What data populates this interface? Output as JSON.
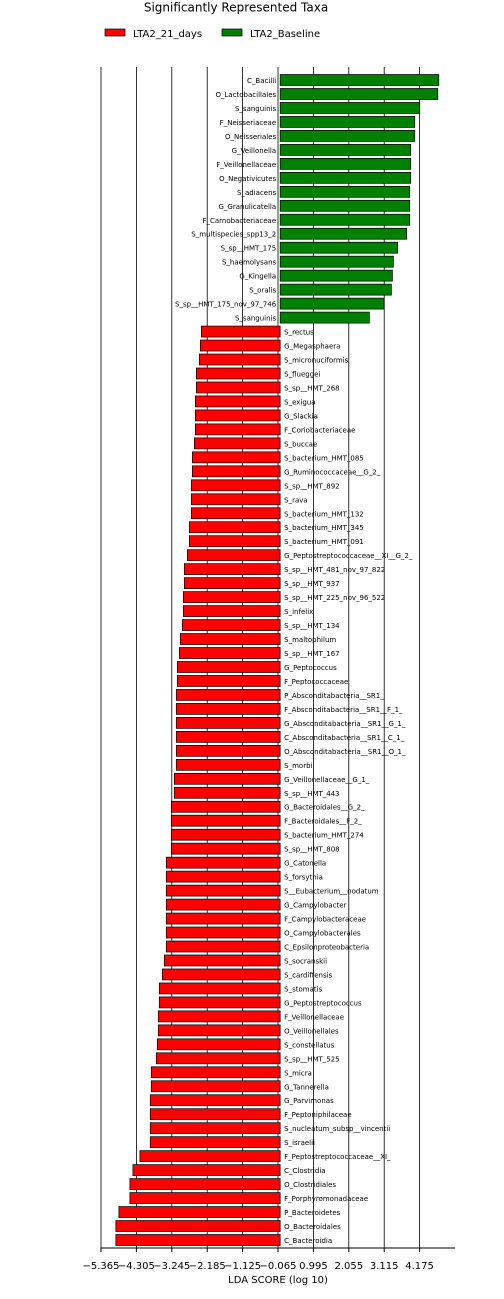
{
  "chart_data": {
    "type": "bar",
    "orientation": "horizontal",
    "title": "Significantly Represented Taxa",
    "x_label": "LDA SCORE (log 10)",
    "categories": [
      "C_Bacilli",
      "O_Lactobacillales",
      "S_sanguinis",
      "F_Neisseriaceae",
      "O_Neisseriales",
      "G_Veillonella",
      "F_Veillonellaceae",
      "O_Negativicutes",
      "S_adiacens",
      "G_Granulicatella",
      "F_Carnobacteriaceae",
      "S_multispecies_spp13_2",
      "S_sp__HMT_175",
      "S_haemolysans",
      "G_Kingella",
      "S_oralis",
      "S_sp__HMT_175_nov_97_746",
      "S_sanguinis",
      "S_rectus",
      "G_Megasphaera",
      "S_micronuciformis",
      "S_flueggei",
      "S_sp__HMT_268",
      "S_exigua",
      "G_Slackia",
      "F_Coriobacteriaceae",
      "S_buccae",
      "S_bacterium_HMT_085",
      "G_Ruminococcaceae__G_2_",
      "S_sp__HMT_892",
      "S_rava",
      "S_bacterium_HMT_132",
      "S_bacterium_HMT_345",
      "S_bacterium_HMT_091",
      "G_Peptostreptococcaceae__XI__G_2_",
      "S_sp__HMT_481_nov_97_822",
      "S_sp__HMT_937",
      "S_sp__HMT_225_nov_96_522",
      "S_infelix",
      "S_sp__HMT_134",
      "S_maltophilum",
      "S_sp__HMT_167",
      "G_Peptococcus",
      "F_Peptococcaceae",
      "P_Absconditabacteria__SR1_",
      "F_Absconditabacteria__SR1__F_1_",
      "G_Absconditabacteria__SR1__G_1_",
      "C_Absconditabacteria__SR1__C_1_",
      "O_Absconditabacteria__SR1__O_1_",
      "S_morbi",
      "G_Veillonellaceae__G_1_",
      "S_sp__HMT_443",
      "G_Bacteroidales__G_2_",
      "F_Bacteroidales__F_2_",
      "S_bacterium_HMT_274",
      "S_sp__HMT_808",
      "G_Catonella",
      "S_forsythia",
      "S__Eubacterium__nodatum",
      "G_Campylobacter",
      "F_Campylobacteraceae",
      "O_Campylobacterales",
      "C_Epsilonproteobacteria",
      "S_socranskii",
      "S_cardiffensis",
      "S_stomatis",
      "G_Peptostreptococcus",
      "F_Veillonellaceae",
      "O_Veillonellales",
      "S_constellatus",
      "S_sp__HMT_525",
      "S_micra",
      "G_Tannerella",
      "G_Parvimonas",
      "F_Peptoniphilaceae",
      "S_nucleatum_subsp__vincentii",
      "S_israelii",
      "F_Peptostreptococcaceae__XI_",
      "C_Clostridia",
      "O_Clostridiales",
      "F_Porphyromonadaceae",
      "P_Bacteroidetes",
      "O_Bacteroidales",
      "C_Bacteroidia"
    ],
    "series": [
      {
        "name": "LTA2_21_days",
        "color": "#ff0000",
        "values": [
          null,
          null,
          null,
          null,
          null,
          null,
          null,
          null,
          null,
          null,
          null,
          null,
          null,
          null,
          null,
          null,
          null,
          null,
          -2.36,
          -2.39,
          -2.42,
          -2.51,
          -2.51,
          -2.54,
          -2.54,
          -2.54,
          -2.57,
          -2.63,
          -2.63,
          -2.66,
          -2.66,
          -2.66,
          -2.72,
          -2.72,
          -2.78,
          -2.87,
          -2.87,
          -2.9,
          -2.9,
          -2.93,
          -2.99,
          -3.02,
          -3.08,
          -3.08,
          -3.11,
          -3.11,
          -3.11,
          -3.11,
          -3.11,
          -3.11,
          -3.17,
          -3.17,
          -3.26,
          -3.26,
          -3.26,
          -3.26,
          -3.41,
          -3.41,
          -3.41,
          -3.41,
          -3.41,
          -3.41,
          -3.41,
          -3.47,
          -3.53,
          -3.62,
          -3.62,
          -3.65,
          -3.65,
          -3.68,
          -3.71,
          -3.86,
          -3.86,
          -3.89,
          -3.89,
          -3.89,
          -3.89,
          -4.2,
          -4.41,
          -4.5,
          -4.5,
          -4.83,
          -4.92,
          -4.92
        ]
      },
      {
        "name": "LTA2_Baseline",
        "color": "#008000",
        "values": [
          4.75,
          4.72,
          4.18,
          4.03,
          4.03,
          3.91,
          3.91,
          3.91,
          3.88,
          3.88,
          3.88,
          3.79,
          3.52,
          3.39,
          3.36,
          3.33,
          3.09,
          2.67,
          null,
          null,
          null,
          null,
          null,
          null,
          null,
          null,
          null,
          null,
          null,
          null,
          null,
          null,
          null,
          null,
          null,
          null,
          null,
          null,
          null,
          null,
          null,
          null,
          null,
          null,
          null,
          null,
          null,
          null,
          null,
          null,
          null,
          null,
          null,
          null,
          null,
          null,
          null,
          null,
          null,
          null,
          null,
          null,
          null,
          null,
          null,
          null,
          null,
          null,
          null,
          null,
          null,
          null,
          null,
          null,
          null,
          null,
          null,
          null,
          null,
          null,
          null,
          null,
          null,
          null
        ]
      }
    ],
    "xlim": [
      -5.365,
      5.235
    ],
    "xticks": [
      {
        "value": -5.365,
        "label": "−5.365"
      },
      {
        "value": -4.305,
        "label": "−4.305"
      },
      {
        "value": -3.245,
        "label": "−3.245"
      },
      {
        "value": -2.185,
        "label": "−2.185"
      },
      {
        "value": -1.125,
        "label": "−1.125"
      },
      {
        "value": -0.065,
        "label": "−0.065"
      },
      0.995,
      2.055,
      3.115,
      4.175
    ],
    "grid": true,
    "legend": "top"
  }
}
